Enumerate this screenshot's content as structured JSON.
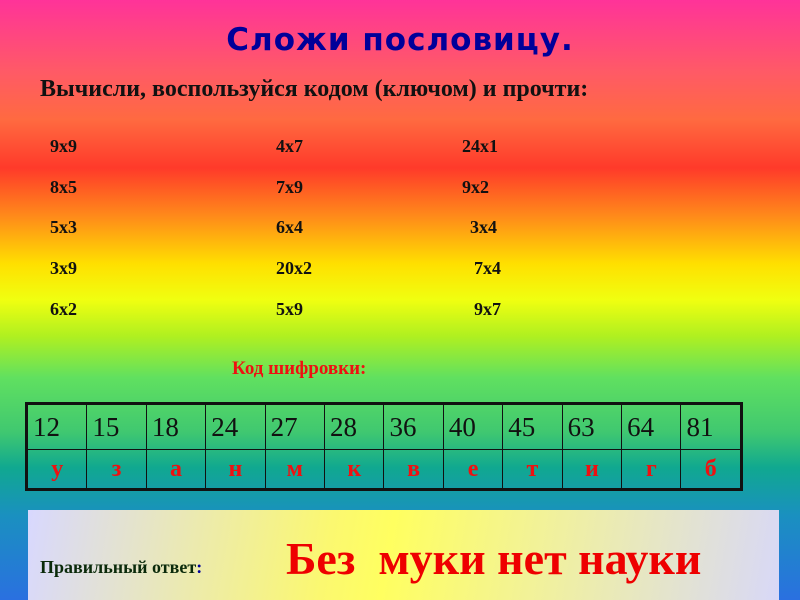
{
  "title": "Сложи пословицу.",
  "subtitle": "Вычисли, воспользуйся кодом  (ключом) и прочти:",
  "columns": [
    [
      "9х9",
      "8х5",
      "5х3",
      "3х9",
      "6х2"
    ],
    [
      "4х7",
      "7х9",
      "6х4",
      "20х2",
      "5х9"
    ],
    [
      "24х1",
      "9х2",
      "3х4",
      "7х4",
      "9х7"
    ]
  ],
  "code_label": "Код шифровки:",
  "code_table": {
    "numbers": [
      "12",
      "15",
      "18",
      "24",
      "27",
      "28",
      "36",
      "40",
      "45",
      "63",
      "64",
      "81"
    ],
    "letters": [
      "у",
      "з",
      "а",
      "н",
      "м",
      "к",
      "в",
      "е",
      "т",
      "и",
      "г",
      "б"
    ]
  },
  "answer": {
    "label": "Правильный ответ",
    "colon": ":",
    "text": "Без  муки нет науки"
  }
}
